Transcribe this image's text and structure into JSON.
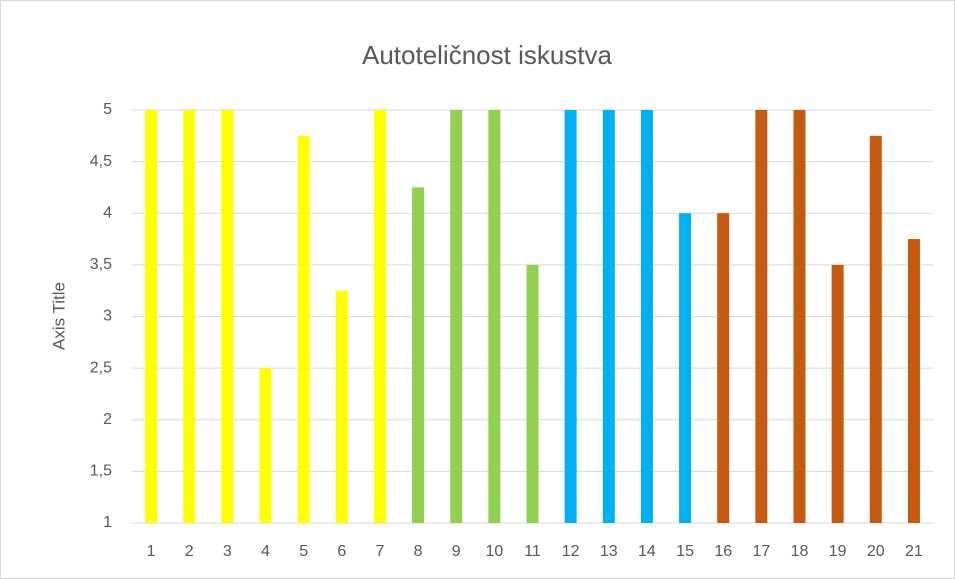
{
  "chart_data": {
    "type": "bar",
    "title": "Autoteličnost iskustva",
    "y_axis_label": "Axis Title",
    "categories": [
      "1",
      "2",
      "3",
      "4",
      "5",
      "6",
      "7",
      "8",
      "9",
      "10",
      "11",
      "12",
      "13",
      "14",
      "15",
      "16",
      "17",
      "18",
      "19",
      "20",
      "21"
    ],
    "values": [
      5,
      5,
      5,
      2.5,
      4.75,
      3.25,
      5,
      4.25,
      5,
      5,
      3.5,
      5,
      5,
      5,
      4,
      4,
      5,
      5,
      3.5,
      4.75,
      3.75
    ],
    "colors": [
      "#ffff00",
      "#ffff00",
      "#ffff00",
      "#ffff00",
      "#ffff00",
      "#ffff00",
      "#ffff00",
      "#92d050",
      "#92d050",
      "#92d050",
      "#92d050",
      "#00b0f0",
      "#00b0f0",
      "#00b0f0",
      "#00b0f0",
      "#c55a11",
      "#c55a11",
      "#c55a11",
      "#c55a11",
      "#c55a11",
      "#c55a11"
    ],
    "ylim": [
      1,
      5
    ],
    "yticks": [
      1,
      {
        "value": 1.5,
        "label": "1,5"
      },
      2,
      {
        "value": 2.5,
        "label": "2,5"
      },
      3,
      {
        "value": 3.5,
        "label": "3,5"
      },
      4,
      {
        "value": 4.5,
        "label": "4,5"
      },
      5
    ],
    "grid": true
  }
}
